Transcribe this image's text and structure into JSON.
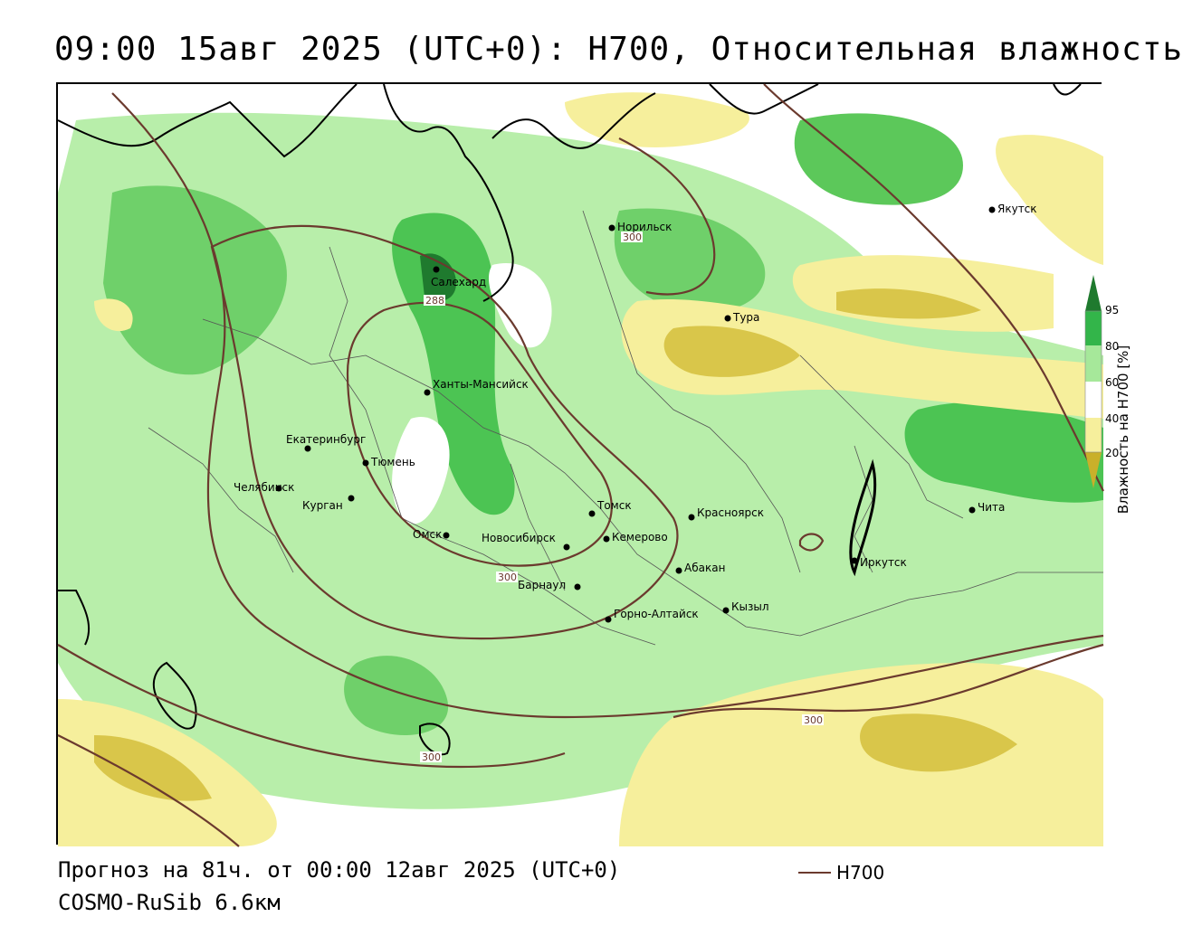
{
  "header": {
    "title": "09:00 15авг 2025 (UTC+0): H700, Относительная влажность"
  },
  "footer": {
    "forecast": "Прогноз на 81ч. от 00:00 12авг 2025 (UTC+0)",
    "model": "COSMO-RuSib 6.6км"
  },
  "legend": {
    "line_label": "H700",
    "line_color": "#6b3a2e"
  },
  "colorbar": {
    "title": "Влажность на Н700 [%]",
    "ticks": [
      "95",
      "80",
      "60",
      "40",
      "20"
    ],
    "colors": {
      "above_95": "#1f7a2e",
      "80_95": "#33b54a",
      "60_80": "#a6e89a",
      "40_60": "#ffffff",
      "20_40": "#f6ef9c",
      "below_20": "#c9b02a"
    }
  },
  "contours": {
    "labels": [
      "300",
      "288",
      "300",
      "300",
      "300"
    ]
  },
  "cities": [
    {
      "name": "Салехард"
    },
    {
      "name": "Норильск"
    },
    {
      "name": "Якутск"
    },
    {
      "name": "Тура"
    },
    {
      "name": "Ханты-Мансийск"
    },
    {
      "name": "Екатеринбург"
    },
    {
      "name": "Тюмень"
    },
    {
      "name": "Челябинск"
    },
    {
      "name": "Курган"
    },
    {
      "name": "Омск"
    },
    {
      "name": "Новосибирск"
    },
    {
      "name": "Томск"
    },
    {
      "name": "Кемерово"
    },
    {
      "name": "Красноярск"
    },
    {
      "name": "Барнаул"
    },
    {
      "name": "Абакан"
    },
    {
      "name": "Горно-Алтайск"
    },
    {
      "name": "Кызыл"
    },
    {
      "name": "Иркутск"
    },
    {
      "name": "Чита"
    }
  ]
}
